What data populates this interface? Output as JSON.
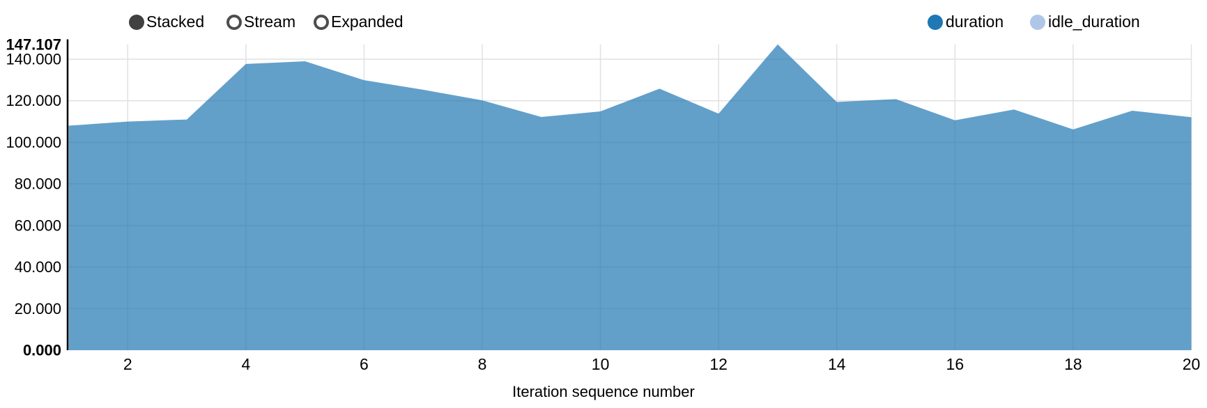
{
  "controls": {
    "options": [
      {
        "label": "Stacked",
        "selected": true
      },
      {
        "label": "Stream",
        "selected": false
      },
      {
        "label": "Expanded",
        "selected": false
      }
    ]
  },
  "legend": {
    "items": [
      {
        "label": "duration",
        "color": "#1f77b4"
      },
      {
        "label": "idle_duration",
        "color": "#aec7e8"
      }
    ]
  },
  "colors": {
    "grid": "#e1e1e1",
    "axis": "#000000",
    "text": "#000000",
    "area_duration": "#1f77b4",
    "area_idle_duration": "#aec7e8"
  },
  "chart_data": {
    "type": "area",
    "stacked": true,
    "title": "",
    "xlabel": "Iteration sequence number",
    "ylabel": "",
    "x": [
      1,
      2,
      3,
      4,
      5,
      6,
      7,
      8,
      9,
      10,
      11,
      12,
      13,
      14,
      15,
      16,
      17,
      18,
      19,
      20
    ],
    "series": [
      {
        "name": "duration",
        "color": "#1f77b4",
        "values": [
          108.0,
          110.0,
          111.0,
          137.7,
          139.0,
          129.9,
          125.3,
          120.2,
          112.2,
          114.9,
          125.8,
          113.8,
          147.107,
          119.4,
          120.8,
          110.6,
          115.8,
          106.2,
          115.2,
          112.1
        ]
      },
      {
        "name": "idle_duration",
        "color": "#aec7e8",
        "values": [
          0,
          0,
          0,
          0,
          0,
          0,
          0,
          0,
          0,
          0,
          0,
          0,
          0,
          0,
          0,
          0,
          0,
          0,
          0,
          0
        ]
      }
    ],
    "xlim": [
      1,
      20
    ],
    "ylim": [
      0,
      147.107
    ],
    "x_ticks": [
      2,
      4,
      6,
      8,
      10,
      12,
      14,
      16,
      18,
      20
    ],
    "y_ticks": [
      {
        "value": 0,
        "label": "0.000",
        "bold": true
      },
      {
        "value": 20,
        "label": "20.000",
        "bold": false
      },
      {
        "value": 40,
        "label": "40.000",
        "bold": false
      },
      {
        "value": 60,
        "label": "60.000",
        "bold": false
      },
      {
        "value": 80,
        "label": "80.000",
        "bold": false
      },
      {
        "value": 100,
        "label": "100.000",
        "bold": false
      },
      {
        "value": 120,
        "label": "120.000",
        "bold": false
      },
      {
        "value": 140,
        "label": "140.000",
        "bold": false
      },
      {
        "value": 147.107,
        "label": "147.107",
        "bold": true
      }
    ],
    "grid": true,
    "legend_position": "top-right",
    "area_opacity": 0.7
  }
}
